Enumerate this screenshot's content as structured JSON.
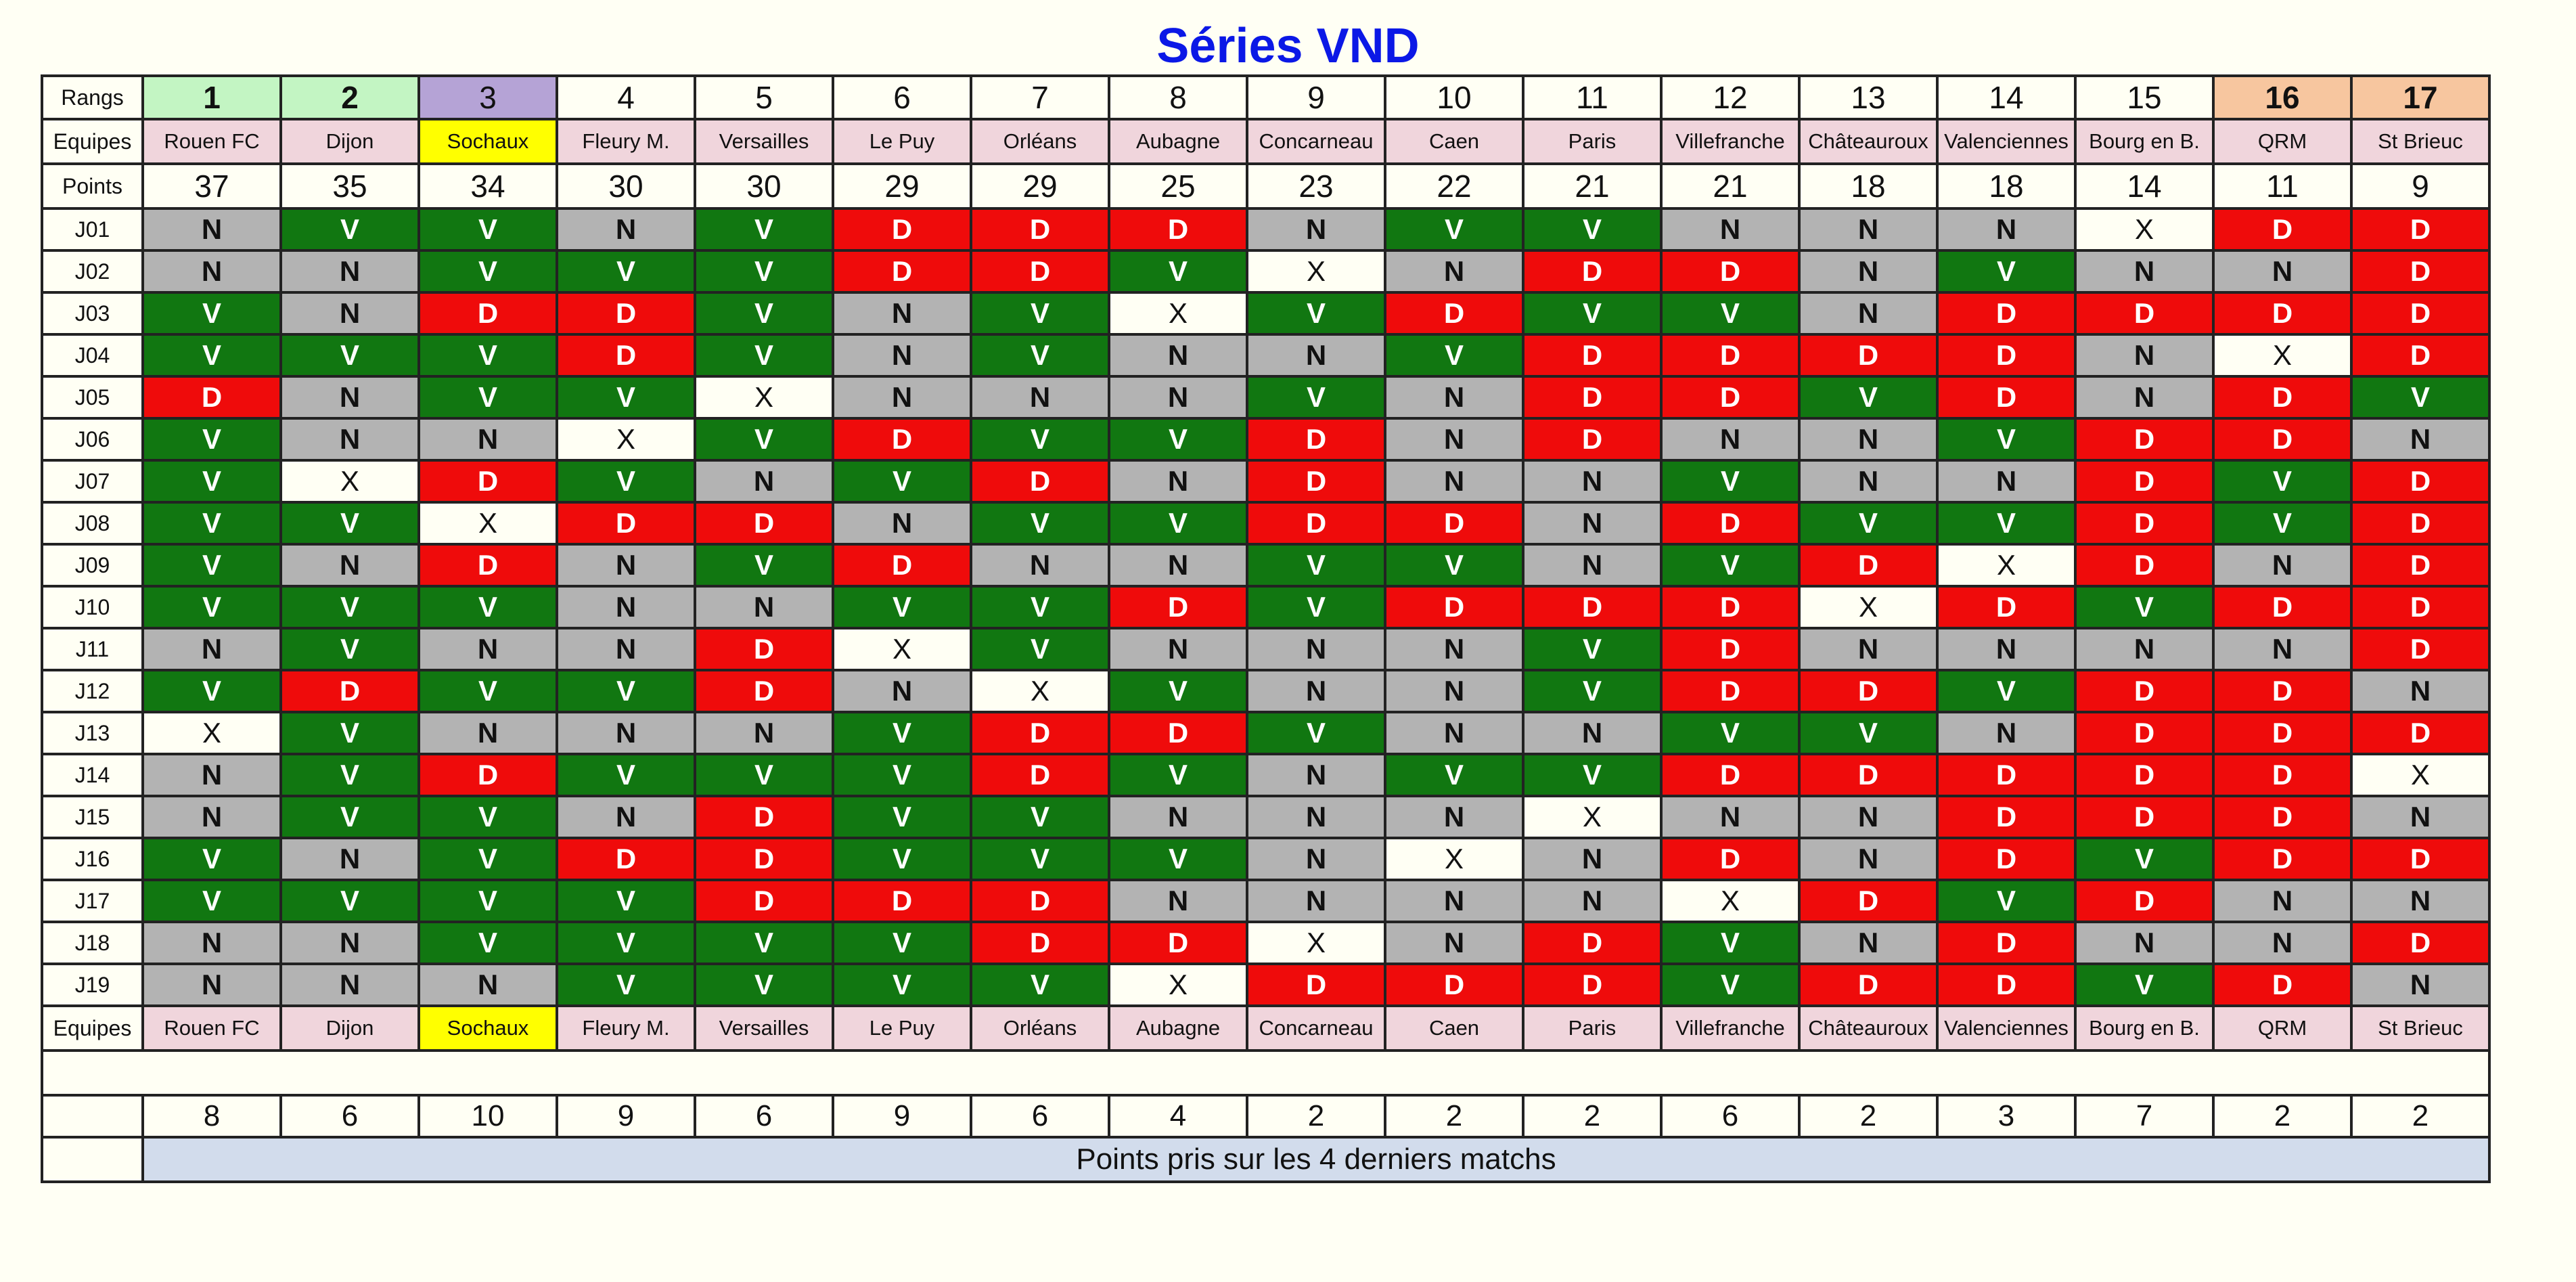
{
  "title": "Séries VND",
  "labels": {
    "rangs": "Rangs",
    "equipes": "Equipes",
    "points": "Points",
    "footer_equipes": "Equipes",
    "last4_caption": "Points pris sur les 4 derniers matchs"
  },
  "colors": {
    "win": "#117711",
    "loss": "#ef0b0b",
    "draw": "#b3b3b3",
    "unplayed": "#fffff4",
    "rank_green": "#c3f5c3",
    "rank_purple": "#b5a3d6",
    "rank_orange": "#f7c69f",
    "team_bg": "#f0d5dc",
    "highlight_team": "#ffff00",
    "caption_bg": "#d2dcec",
    "title": "#0b18e6"
  },
  "legend_codes": {
    "V": "win",
    "D": "loss",
    "N": "draw",
    "X": "unplayed"
  },
  "teams": [
    {
      "rank": "1",
      "name": "Rouen FC",
      "points": "37",
      "last4": "8",
      "rank_style": "green",
      "highlight": false
    },
    {
      "rank": "2",
      "name": "Dijon",
      "points": "35",
      "last4": "6",
      "rank_style": "green",
      "highlight": false
    },
    {
      "rank": "3",
      "name": "Sochaux",
      "points": "34",
      "last4": "10",
      "rank_style": "purple",
      "highlight": true
    },
    {
      "rank": "4",
      "name": "Fleury M.",
      "points": "30",
      "last4": "9",
      "rank_style": "plain",
      "highlight": false
    },
    {
      "rank": "5",
      "name": "Versailles",
      "points": "30",
      "last4": "6",
      "rank_style": "plain",
      "highlight": false
    },
    {
      "rank": "6",
      "name": "Le Puy",
      "points": "29",
      "last4": "9",
      "rank_style": "plain",
      "highlight": false
    },
    {
      "rank": "7",
      "name": "Orléans",
      "points": "29",
      "last4": "6",
      "rank_style": "plain",
      "highlight": false
    },
    {
      "rank": "8",
      "name": "Aubagne",
      "points": "25",
      "last4": "4",
      "rank_style": "plain",
      "highlight": false
    },
    {
      "rank": "9",
      "name": "Concarneau",
      "points": "23",
      "last4": "2",
      "rank_style": "plain",
      "highlight": false
    },
    {
      "rank": "10",
      "name": "Caen",
      "points": "22",
      "last4": "2",
      "rank_style": "plain",
      "highlight": false
    },
    {
      "rank": "11",
      "name": "Paris",
      "points": "21",
      "last4": "2",
      "rank_style": "plain",
      "highlight": false
    },
    {
      "rank": "12",
      "name": "Villefranche",
      "points": "21",
      "last4": "6",
      "rank_style": "plain",
      "highlight": false
    },
    {
      "rank": "13",
      "name": "Châteauroux",
      "points": "18",
      "last4": "2",
      "rank_style": "plain",
      "highlight": false
    },
    {
      "rank": "14",
      "name": "Valenciennes",
      "points": "18",
      "last4": "3",
      "rank_style": "plain",
      "highlight": false
    },
    {
      "rank": "15",
      "name": "Bourg en B.",
      "points": "14",
      "last4": "7",
      "rank_style": "plain",
      "highlight": false
    },
    {
      "rank": "16",
      "name": "QRM",
      "points": "11",
      "last4": "2",
      "rank_style": "orange",
      "highlight": false
    },
    {
      "rank": "17",
      "name": "St Brieuc",
      "points": "9",
      "last4": "2",
      "rank_style": "orange",
      "highlight": false
    }
  ],
  "rounds": [
    {
      "label": "J01",
      "results": [
        "N",
        "V",
        "V",
        "N",
        "V",
        "D",
        "D",
        "D",
        "N",
        "V",
        "V",
        "N",
        "N",
        "N",
        "X",
        "D",
        "D"
      ]
    },
    {
      "label": "J02",
      "results": [
        "N",
        "N",
        "V",
        "V",
        "V",
        "D",
        "D",
        "V",
        "X",
        "N",
        "D",
        "D",
        "N",
        "V",
        "N",
        "N",
        "D"
      ]
    },
    {
      "label": "J03",
      "results": [
        "V",
        "N",
        "D",
        "D",
        "V",
        "N",
        "V",
        "X",
        "V",
        "D",
        "V",
        "V",
        "N",
        "D",
        "D",
        "D",
        "D"
      ]
    },
    {
      "label": "J04",
      "results": [
        "V",
        "V",
        "V",
        "D",
        "V",
        "N",
        "V",
        "N",
        "N",
        "V",
        "D",
        "D",
        "D",
        "D",
        "N",
        "X",
        "D"
      ]
    },
    {
      "label": "J05",
      "results": [
        "D",
        "N",
        "V",
        "V",
        "X",
        "N",
        "N",
        "N",
        "V",
        "N",
        "D",
        "D",
        "V",
        "D",
        "N",
        "D",
        "V"
      ]
    },
    {
      "label": "J06",
      "results": [
        "V",
        "N",
        "N",
        "X",
        "V",
        "D",
        "V",
        "V",
        "D",
        "N",
        "D",
        "N",
        "N",
        "V",
        "D",
        "D",
        "N"
      ]
    },
    {
      "label": "J07",
      "results": [
        "V",
        "X",
        "D",
        "V",
        "N",
        "V",
        "D",
        "N",
        "D",
        "N",
        "N",
        "V",
        "N",
        "N",
        "D",
        "V",
        "D"
      ]
    },
    {
      "label": "J08",
      "results": [
        "V",
        "V",
        "X",
        "D",
        "D",
        "N",
        "V",
        "V",
        "D",
        "D",
        "N",
        "D",
        "V",
        "V",
        "D",
        "V",
        "D"
      ]
    },
    {
      "label": "J09",
      "results": [
        "V",
        "N",
        "D",
        "N",
        "V",
        "D",
        "N",
        "N",
        "V",
        "V",
        "N",
        "V",
        "D",
        "X",
        "D",
        "N",
        "D"
      ]
    },
    {
      "label": "J10",
      "results": [
        "V",
        "V",
        "V",
        "N",
        "N",
        "V",
        "V",
        "D",
        "V",
        "D",
        "D",
        "D",
        "X",
        "D",
        "V",
        "D",
        "D"
      ]
    },
    {
      "label": "J11",
      "results": [
        "N",
        "V",
        "N",
        "N",
        "D",
        "X",
        "V",
        "N",
        "N",
        "N",
        "V",
        "D",
        "N",
        "N",
        "N",
        "N",
        "D"
      ]
    },
    {
      "label": "J12",
      "results": [
        "V",
        "D",
        "V",
        "V",
        "D",
        "N",
        "X",
        "V",
        "N",
        "N",
        "V",
        "D",
        "D",
        "V",
        "D",
        "D",
        "N"
      ]
    },
    {
      "label": "J13",
      "results": [
        "X",
        "V",
        "N",
        "N",
        "N",
        "V",
        "D",
        "D",
        "V",
        "N",
        "N",
        "V",
        "V",
        "N",
        "D",
        "D",
        "D"
      ]
    },
    {
      "label": "J14",
      "results": [
        "N",
        "V",
        "D",
        "V",
        "V",
        "V",
        "D",
        "V",
        "N",
        "V",
        "V",
        "D",
        "D",
        "D",
        "D",
        "D",
        "X"
      ]
    },
    {
      "label": "J15",
      "results": [
        "N",
        "V",
        "V",
        "N",
        "D",
        "V",
        "V",
        "N",
        "N",
        "N",
        "X",
        "N",
        "N",
        "D",
        "D",
        "D",
        "N"
      ]
    },
    {
      "label": "J16",
      "results": [
        "V",
        "N",
        "V",
        "D",
        "D",
        "V",
        "V",
        "V",
        "N",
        "X",
        "N",
        "D",
        "N",
        "D",
        "V",
        "D",
        "D"
      ]
    },
    {
      "label": "J17",
      "results": [
        "V",
        "V",
        "V",
        "V",
        "D",
        "D",
        "D",
        "N",
        "N",
        "N",
        "N",
        "X",
        "D",
        "V",
        "D",
        "N",
        "N"
      ]
    },
    {
      "label": "J18",
      "results": [
        "N",
        "N",
        "V",
        "V",
        "V",
        "V",
        "D",
        "D",
        "X",
        "N",
        "D",
        "V",
        "N",
        "D",
        "N",
        "N",
        "D"
      ]
    },
    {
      "label": "J19",
      "results": [
        "N",
        "N",
        "N",
        "V",
        "V",
        "V",
        "V",
        "X",
        "D",
        "D",
        "D",
        "V",
        "D",
        "D",
        "V",
        "D",
        "N"
      ]
    }
  ]
}
